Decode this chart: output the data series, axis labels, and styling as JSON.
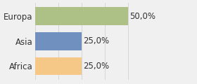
{
  "categories": [
    "Africa",
    "Asia",
    "Europa"
  ],
  "values": [
    25.0,
    25.0,
    50.0
  ],
  "bar_colors": [
    "#f5c888",
    "#7090bf",
    "#adc085"
  ],
  "labels": [
    "25,0%",
    "25,0%",
    "50,0%"
  ],
  "xlim": [
    0,
    68
  ],
  "background_color": "#f0f0f0",
  "bar_height": 0.72,
  "label_fontsize": 8.5,
  "tick_fontsize": 8.5,
  "figsize": [
    2.8,
    1.2
  ],
  "dpi": 100
}
